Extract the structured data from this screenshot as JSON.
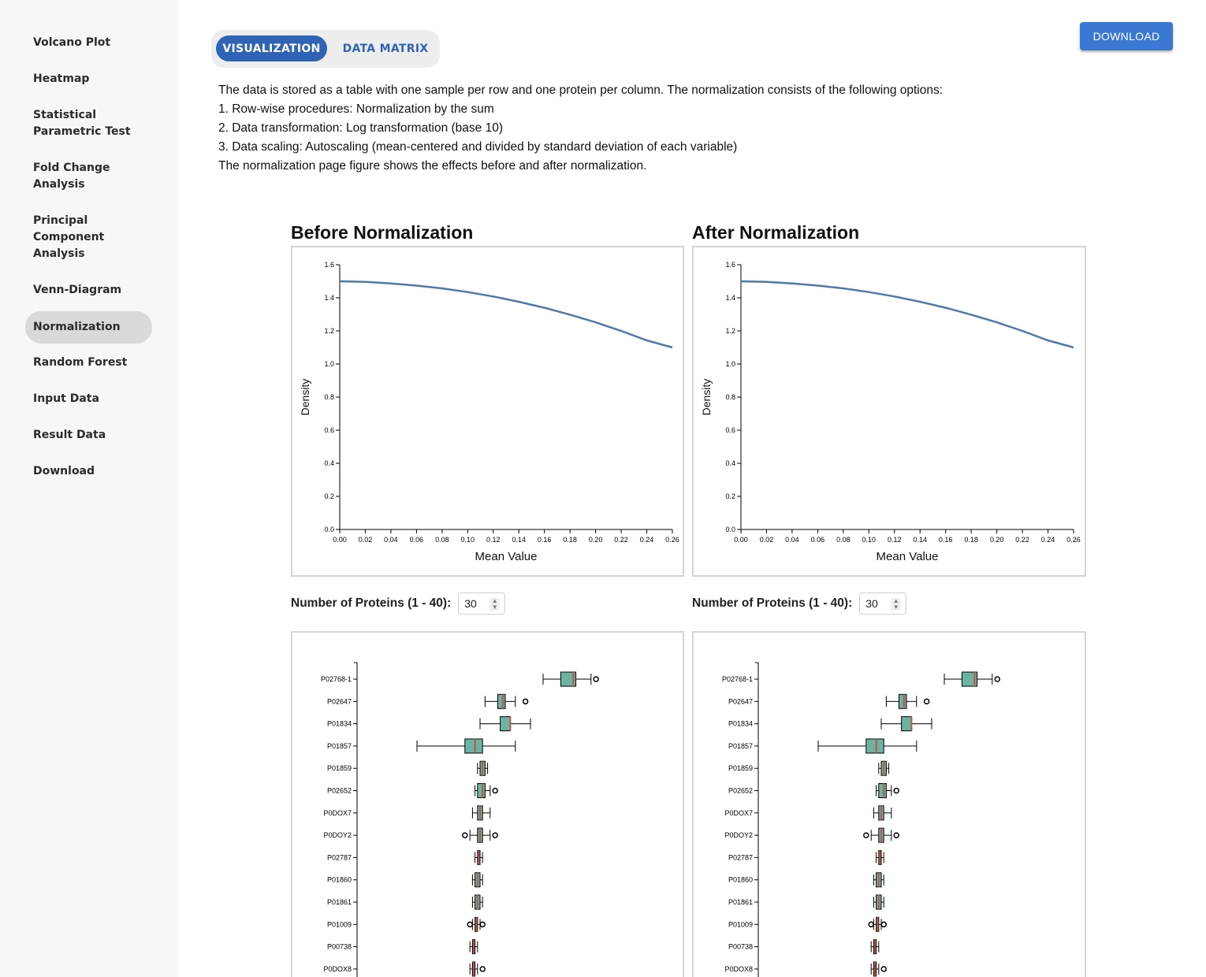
{
  "sidebar": {
    "items": [
      {
        "label": "Volcano Plot",
        "active": false
      },
      {
        "label": "Heatmap",
        "active": false
      },
      {
        "label": "Statistical Parametric Test",
        "active": false
      },
      {
        "label": "Fold Change Analysis",
        "active": false
      },
      {
        "label": "Principal Component Analysis",
        "active": false
      },
      {
        "label": "Venn-Diagram",
        "active": false
      },
      {
        "label": "Normalization",
        "active": true
      },
      {
        "label": "Random Forest",
        "active": false
      },
      {
        "label": "Input Data",
        "active": false
      },
      {
        "label": "Result Data",
        "active": false
      },
      {
        "label": "Download",
        "active": false
      }
    ]
  },
  "tabs": {
    "visualization": "VISUALIZATION",
    "data_matrix": "DATA MATRIX"
  },
  "download_label": "DOWNLOAD",
  "description": {
    "intro": "The data is stored as a table with one sample per row and one protein per column. The normalization consists of the following options:",
    "step1": "1. Row-wise procedures: Normalization by the sum",
    "step2": "2. Data transformation: Log transformation (base 10)",
    "step3": "3. Data scaling: Autoscaling (mean-centered and divided by standard deviation of each variable)",
    "outro": "The normalization page figure shows the effects before and after normalization."
  },
  "protein_control": {
    "label": "Number of Proteins (1 - 40):",
    "value": "30"
  },
  "colors": {
    "accent": "#2f63b5",
    "line": "#4e79a7",
    "box_fill": "#6cb3a2",
    "median": "#c0504d"
  },
  "chart_data": [
    {
      "type": "line",
      "title": "Before Normalization",
      "xlabel": "Mean Value",
      "ylabel": "Density",
      "xlim": [
        0,
        0.26
      ],
      "ylim": [
        0,
        1.6
      ],
      "xticks": [
        "0.00",
        "0.02",
        "0.04",
        "0.06",
        "0.08",
        "0.10",
        "0.12",
        "0.14",
        "0.16",
        "0.18",
        "0.20",
        "0.22",
        "0.24",
        "0.26"
      ],
      "yticks": [
        "0.0",
        "0.2",
        "0.4",
        "0.6",
        "0.8",
        "1.0",
        "1.2",
        "1.4",
        "1.6"
      ],
      "x": [
        0.0,
        0.02,
        0.04,
        0.06,
        0.08,
        0.1,
        0.12,
        0.14,
        0.16,
        0.18,
        0.2,
        0.22,
        0.24,
        0.26
      ],
      "y": [
        1.5,
        1.496,
        1.487,
        1.474,
        1.457,
        1.435,
        1.408,
        1.376,
        1.34,
        1.298,
        1.252,
        1.2,
        1.143,
        1.1
      ]
    },
    {
      "type": "line",
      "title": "After Normalization",
      "xlabel": "Mean Value",
      "ylabel": "Density",
      "xlim": [
        0,
        0.26
      ],
      "ylim": [
        0,
        1.6
      ],
      "xticks": [
        "0.00",
        "0.02",
        "0.04",
        "0.06",
        "0.08",
        "0.10",
        "0.12",
        "0.14",
        "0.16",
        "0.18",
        "0.20",
        "0.22",
        "0.24",
        "0.26"
      ],
      "yticks": [
        "0.0",
        "0.2",
        "0.4",
        "0.6",
        "0.8",
        "1.0",
        "1.2",
        "1.4",
        "1.6"
      ],
      "x": [
        0.0,
        0.02,
        0.04,
        0.06,
        0.08,
        0.1,
        0.12,
        0.14,
        0.16,
        0.18,
        0.2,
        0.22,
        0.24,
        0.26
      ],
      "y": [
        1.5,
        1.496,
        1.487,
        1.474,
        1.457,
        1.435,
        1.408,
        1.376,
        1.34,
        1.298,
        1.252,
        1.2,
        1.143,
        1.1
      ]
    },
    {
      "type": "box",
      "panel": "before",
      "categories": [
        "P02768-1",
        "P02647",
        "P01834",
        "P01857",
        "P01859",
        "P02652",
        "P0DOX7",
        "P0DOY2",
        "P02787",
        "P01860",
        "P01861",
        "P01009",
        "P00738",
        "P0DOX8"
      ],
      "boxes": [
        {
          "min": 0.65,
          "q1": 0.72,
          "median": 0.77,
          "q3": 0.78,
          "max": 0.84,
          "outliers_low": [],
          "outliers_high": [
            0.86
          ]
        },
        {
          "min": 0.42,
          "q1": 0.47,
          "median": 0.49,
          "q3": 0.5,
          "max": 0.54,
          "outliers_low": [],
          "outliers_high": [
            0.58
          ]
        },
        {
          "min": 0.4,
          "q1": 0.48,
          "median": 0.52,
          "q3": 0.52,
          "max": 0.6,
          "outliers_low": [],
          "outliers_high": []
        },
        {
          "min": 0.15,
          "q1": 0.34,
          "median": 0.38,
          "q3": 0.41,
          "max": 0.54,
          "outliers_low": [],
          "outliers_high": []
        },
        {
          "min": 0.39,
          "q1": 0.4,
          "median": 0.41,
          "q3": 0.42,
          "max": 0.43,
          "outliers_low": [],
          "outliers_high": []
        },
        {
          "min": 0.38,
          "q1": 0.39,
          "median": 0.41,
          "q3": 0.42,
          "max": 0.44,
          "outliers_low": [],
          "outliers_high": [
            0.46
          ]
        },
        {
          "min": 0.37,
          "q1": 0.39,
          "median": 0.4,
          "q3": 0.41,
          "max": 0.44,
          "outliers_low": [],
          "outliers_high": []
        },
        {
          "min": 0.36,
          "q1": 0.39,
          "median": 0.4,
          "q3": 0.41,
          "max": 0.44,
          "outliers_low": [
            0.34
          ],
          "outliers_high": [
            0.46
          ]
        },
        {
          "min": 0.38,
          "q1": 0.39,
          "median": 0.395,
          "q3": 0.4,
          "max": 0.41,
          "outliers_low": [],
          "outliers_high": []
        },
        {
          "min": 0.37,
          "q1": 0.38,
          "median": 0.39,
          "q3": 0.4,
          "max": 0.41,
          "outliers_low": [],
          "outliers_high": []
        },
        {
          "min": 0.37,
          "q1": 0.38,
          "median": 0.39,
          "q3": 0.4,
          "max": 0.41,
          "outliers_low": [],
          "outliers_high": []
        },
        {
          "min": 0.37,
          "q1": 0.38,
          "median": 0.385,
          "q3": 0.39,
          "max": 0.4,
          "outliers_low": [
            0.36
          ],
          "outliers_high": [
            0.41
          ]
        },
        {
          "min": 0.36,
          "q1": 0.37,
          "median": 0.375,
          "q3": 0.38,
          "max": 0.39,
          "outliers_low": [],
          "outliers_high": []
        },
        {
          "min": 0.36,
          "q1": 0.37,
          "median": 0.375,
          "q3": 0.38,
          "max": 0.39,
          "outliers_low": [],
          "outliers_high": [
            0.41
          ]
        }
      ]
    },
    {
      "type": "box",
      "panel": "after",
      "categories": [
        "P02768-1",
        "P02647",
        "P01834",
        "P01857",
        "P01859",
        "P02652",
        "P0DOX7",
        "P0DOY2",
        "P02787",
        "P01860",
        "P01861",
        "P01009",
        "P00738",
        "P0DOX8"
      ],
      "boxes": [
        {
          "min": 0.65,
          "q1": 0.72,
          "median": 0.77,
          "q3": 0.78,
          "max": 0.84,
          "outliers_low": [],
          "outliers_high": [
            0.86
          ]
        },
        {
          "min": 0.42,
          "q1": 0.47,
          "median": 0.49,
          "q3": 0.5,
          "max": 0.54,
          "outliers_low": [],
          "outliers_high": [
            0.58
          ]
        },
        {
          "min": 0.4,
          "q1": 0.48,
          "median": 0.52,
          "q3": 0.52,
          "max": 0.6,
          "outliers_low": [],
          "outliers_high": []
        },
        {
          "min": 0.15,
          "q1": 0.34,
          "median": 0.38,
          "q3": 0.41,
          "max": 0.54,
          "outliers_low": [],
          "outliers_high": []
        },
        {
          "min": 0.39,
          "q1": 0.4,
          "median": 0.41,
          "q3": 0.42,
          "max": 0.43,
          "outliers_low": [],
          "outliers_high": []
        },
        {
          "min": 0.38,
          "q1": 0.39,
          "median": 0.41,
          "q3": 0.42,
          "max": 0.44,
          "outliers_low": [],
          "outliers_high": [
            0.46
          ]
        },
        {
          "min": 0.37,
          "q1": 0.39,
          "median": 0.4,
          "q3": 0.41,
          "max": 0.44,
          "outliers_low": [],
          "outliers_high": []
        },
        {
          "min": 0.36,
          "q1": 0.39,
          "median": 0.4,
          "q3": 0.41,
          "max": 0.44,
          "outliers_low": [
            0.34
          ],
          "outliers_high": [
            0.46
          ]
        },
        {
          "min": 0.38,
          "q1": 0.39,
          "median": 0.395,
          "q3": 0.4,
          "max": 0.41,
          "outliers_low": [],
          "outliers_high": []
        },
        {
          "min": 0.37,
          "q1": 0.38,
          "median": 0.39,
          "q3": 0.4,
          "max": 0.41,
          "outliers_low": [],
          "outliers_high": []
        },
        {
          "min": 0.37,
          "q1": 0.38,
          "median": 0.39,
          "q3": 0.4,
          "max": 0.41,
          "outliers_low": [],
          "outliers_high": []
        },
        {
          "min": 0.37,
          "q1": 0.38,
          "median": 0.385,
          "q3": 0.39,
          "max": 0.4,
          "outliers_low": [
            0.36
          ],
          "outliers_high": [
            0.41
          ]
        },
        {
          "min": 0.36,
          "q1": 0.37,
          "median": 0.375,
          "q3": 0.38,
          "max": 0.39,
          "outliers_low": [],
          "outliers_high": []
        },
        {
          "min": 0.36,
          "q1": 0.37,
          "median": 0.375,
          "q3": 0.38,
          "max": 0.39,
          "outliers_low": [],
          "outliers_high": [
            0.41
          ]
        }
      ]
    }
  ]
}
